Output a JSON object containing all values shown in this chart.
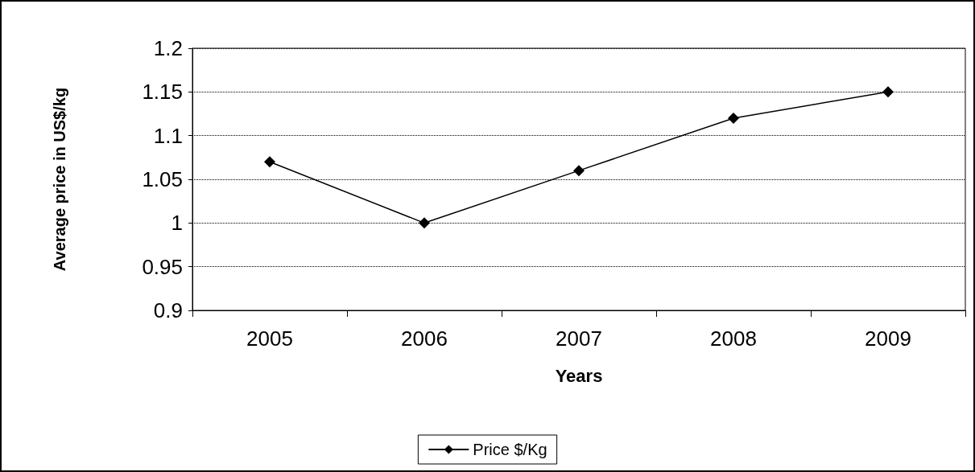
{
  "chart_data": {
    "type": "line",
    "xlabel": "Years",
    "ylabel": "Average price in US$/kg",
    "categories": [
      "2005",
      "2006",
      "2007",
      "2008",
      "2009"
    ],
    "series": [
      {
        "name": "Price $/Kg",
        "color": "#000000",
        "values": [
          1.07,
          1.0,
          1.06,
          1.12,
          1.15
        ]
      }
    ],
    "ylim": [
      0.9,
      1.2
    ],
    "yticks": [
      0.9,
      0.95,
      1,
      1.05,
      1.1,
      1.15,
      1.2
    ],
    "grid": "y",
    "legend": "bottom",
    "marker": "diamond",
    "line_style": "solid"
  }
}
